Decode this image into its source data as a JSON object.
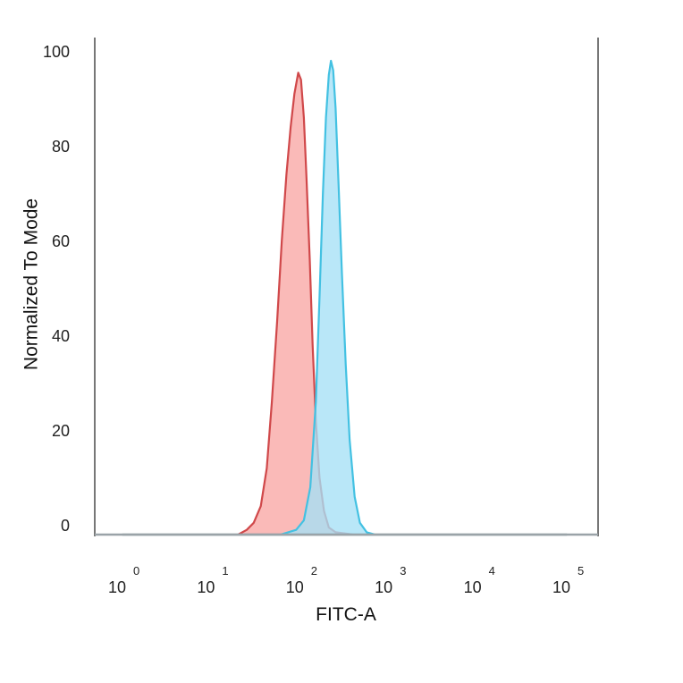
{
  "chart_data": {
    "type": "area",
    "title": "",
    "xlabel": "FITC-A",
    "ylabel": "Normalized To Mode",
    "x_scale": "log",
    "xlim": [
      1,
      100000
    ],
    "ylim": [
      0,
      100
    ],
    "x_ticks": [
      {
        "base": "10",
        "exp": "0",
        "value": 1
      },
      {
        "base": "10",
        "exp": "1",
        "value": 10
      },
      {
        "base": "10",
        "exp": "2",
        "value": 100
      },
      {
        "base": "10",
        "exp": "3",
        "value": 1000
      },
      {
        "base": "10",
        "exp": "4",
        "value": 10000
      },
      {
        "base": "10",
        "exp": "5",
        "value": 100000
      }
    ],
    "y_ticks": [
      0,
      20,
      40,
      60,
      80,
      100
    ],
    "grid": false,
    "legend": "none",
    "series": [
      {
        "fill": "#f8a7a4",
        "stroke": "#d0484a",
        "points": [
          [
            1,
            0
          ],
          [
            20,
            0
          ],
          [
            25,
            1
          ],
          [
            30,
            2.5
          ],
          [
            36,
            6
          ],
          [
            42,
            14
          ],
          [
            48,
            28
          ],
          [
            55,
            45
          ],
          [
            62,
            62
          ],
          [
            70,
            76
          ],
          [
            78,
            86
          ],
          [
            86,
            93
          ],
          [
            95,
            97.5
          ],
          [
            102,
            96
          ],
          [
            110,
            88
          ],
          [
            118,
            75
          ],
          [
            128,
            58
          ],
          [
            138,
            40
          ],
          [
            150,
            24
          ],
          [
            165,
            12
          ],
          [
            185,
            5
          ],
          [
            210,
            1.5
          ],
          [
            250,
            0.5
          ],
          [
            400,
            0
          ],
          [
            100000,
            0
          ]
        ]
      },
      {
        "fill": "#a5e0f6",
        "stroke": "#43c1e2",
        "points": [
          [
            1,
            0
          ],
          [
            60,
            0
          ],
          [
            90,
            1
          ],
          [
            110,
            3
          ],
          [
            130,
            10
          ],
          [
            150,
            28
          ],
          [
            165,
            50
          ],
          [
            180,
            72
          ],
          [
            195,
            88
          ],
          [
            210,
            97
          ],
          [
            222,
            100
          ],
          [
            235,
            98
          ],
          [
            250,
            90
          ],
          [
            270,
            74
          ],
          [
            295,
            55
          ],
          [
            325,
            36
          ],
          [
            360,
            20
          ],
          [
            410,
            8
          ],
          [
            470,
            2.5
          ],
          [
            560,
            0.5
          ],
          [
            700,
            0
          ],
          [
            100000,
            0
          ]
        ]
      }
    ]
  }
}
